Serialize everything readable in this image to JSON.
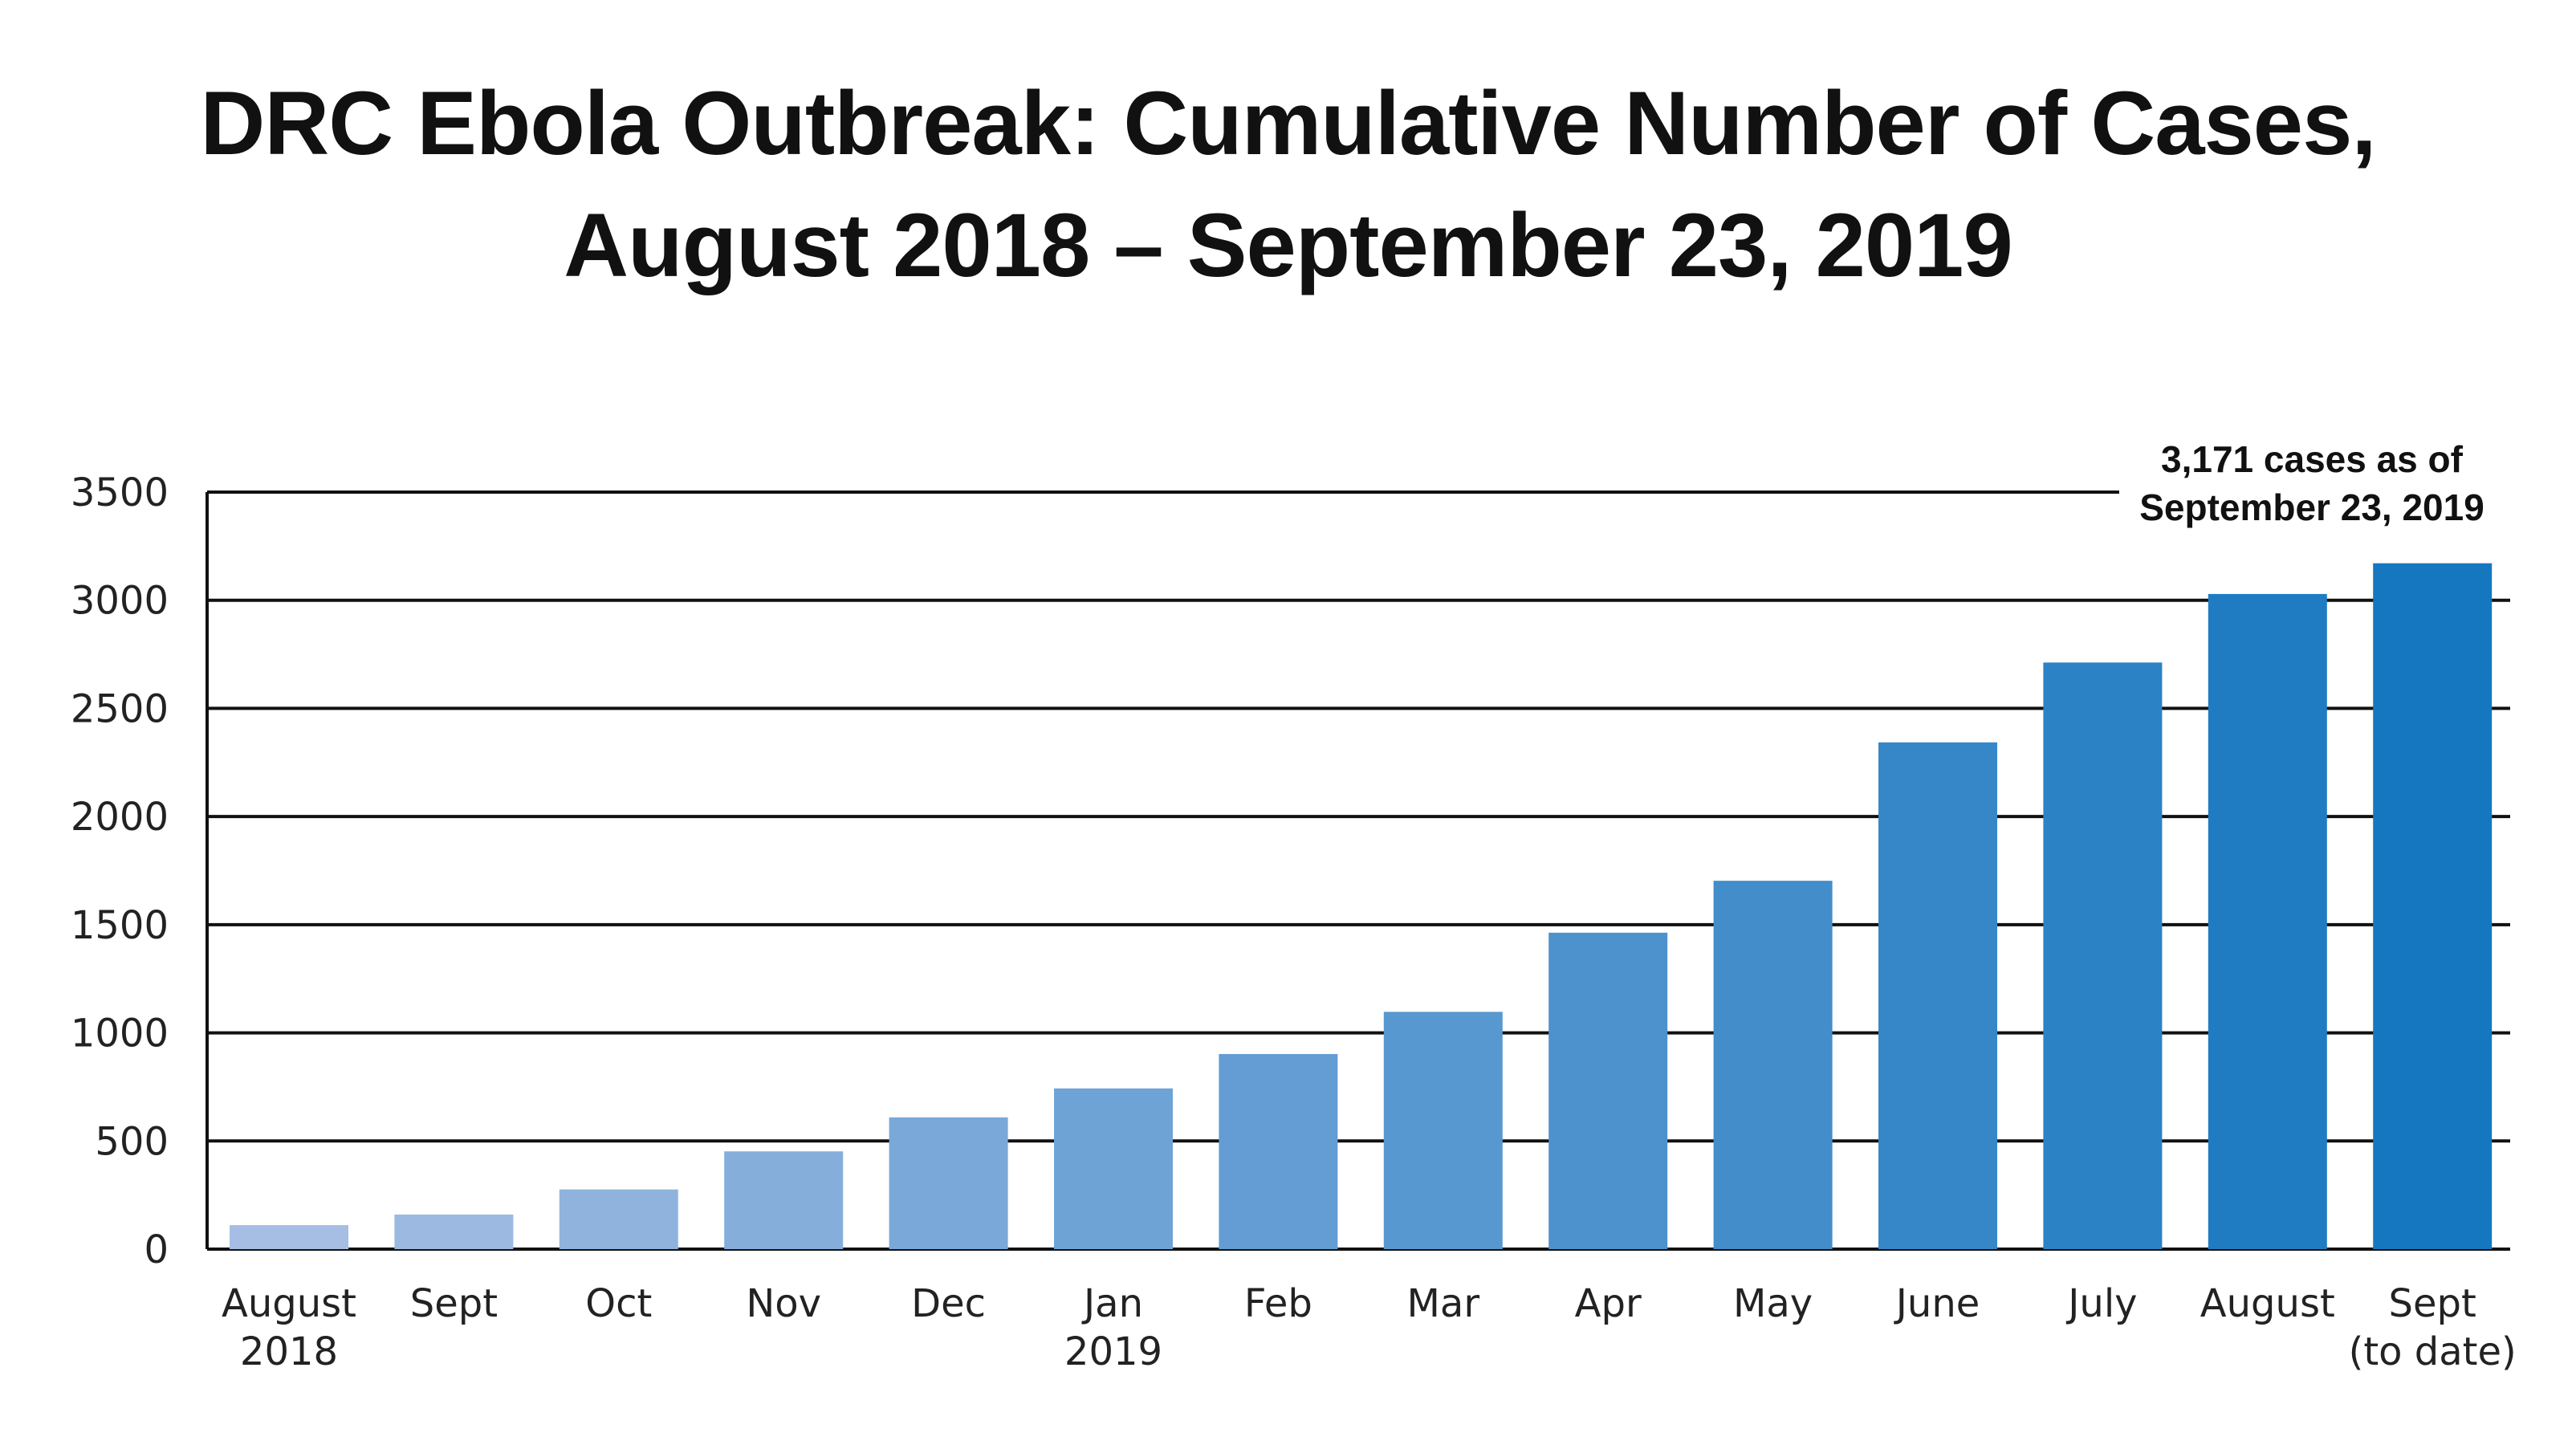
{
  "chart_data": {
    "type": "bar",
    "title_line1": "DRC Ebola Outbreak: Cumulative Number of Cases,",
    "title_line2": "August 2018 – September 23, 2019",
    "categories": [
      [
        "August",
        "2018"
      ],
      [
        "Sept"
      ],
      [
        "Oct"
      ],
      [
        "Nov"
      ],
      [
        "Dec"
      ],
      [
        "Jan",
        "2019"
      ],
      [
        "Feb"
      ],
      [
        "Mar"
      ],
      [
        "Apr"
      ],
      [
        "May"
      ],
      [
        "June"
      ],
      [
        "July"
      ],
      [
        "August"
      ],
      [
        "Sept",
        "(to date)"
      ]
    ],
    "values": [
      111,
      160,
      276,
      452,
      609,
      743,
      902,
      1097,
      1463,
      1703,
      2343,
      2712,
      3029,
      3171
    ],
    "ylim": [
      0,
      3500
    ],
    "yticks": [
      0,
      500,
      1000,
      1500,
      2000,
      2500,
      3000,
      3500
    ],
    "grid": true,
    "annotation_line1": "3,171 cases as of",
    "annotation_line2": "September 23, 2019",
    "colors": {
      "bar_start": "#A6BEE4",
      "bar_end": "#1577BF",
      "grid": "#111111",
      "text": "#222222"
    }
  }
}
